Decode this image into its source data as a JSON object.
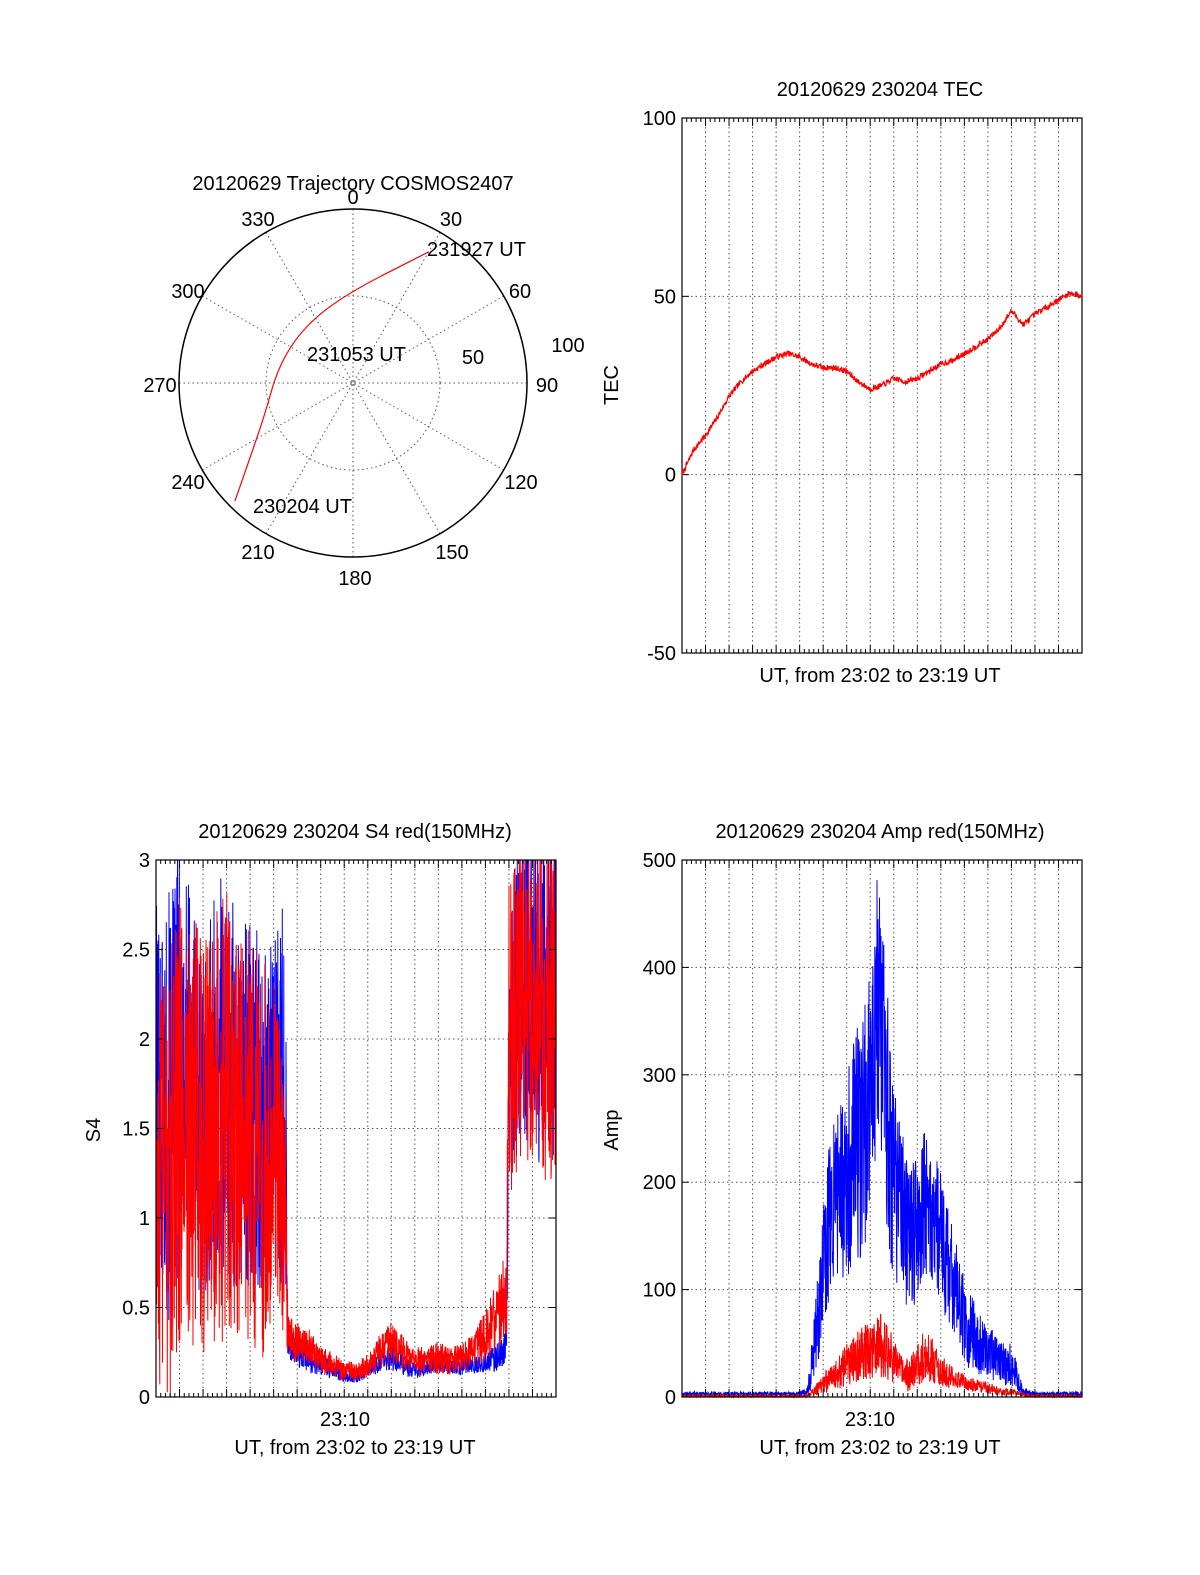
{
  "chart_data": [
    {
      "type": "polar",
      "title": "20120629 Trajectory COSMOS2407",
      "azimuth_labels": [
        "0",
        "30",
        "60",
        "90",
        "120",
        "150",
        "180",
        "210",
        "240",
        "270",
        "300",
        "330"
      ],
      "radial_labels": [
        "50",
        "100"
      ],
      "radial_max": 100,
      "trajectory": {
        "color": "#ff0000",
        "points": [
          {
            "az": 225,
            "r": 96
          },
          {
            "az": 233,
            "r": 75
          },
          {
            "az": 250,
            "r": 54
          },
          {
            "az": 283,
            "r": 44
          },
          {
            "az": 320,
            "r": 43
          },
          {
            "az": 357,
            "r": 52
          },
          {
            "az": 30,
            "r": 87
          }
        ]
      },
      "annotations": [
        "231927 UT",
        "231053 UT",
        "230204 UT"
      ]
    },
    {
      "type": "line",
      "title": "20120629 230204 TEC",
      "ylabel": "TEC",
      "xlabel": "UT, from 23:02 to 23:19 UT",
      "ylim": [
        -50,
        100
      ],
      "yticks": [
        "100",
        "50",
        "0",
        "-50"
      ],
      "xlim": [
        0,
        17
      ],
      "series": [
        {
          "color": "#ff0000",
          "x": [
            0,
            0.5,
            1,
            1.5,
            2,
            2.5,
            3,
            3.5,
            4,
            4.5,
            5,
            5.5,
            6,
            6.5,
            7,
            7.5,
            8,
            8.5,
            9,
            9.5,
            10,
            10.5,
            11,
            11.5,
            12,
            12.5,
            13,
            13.5,
            14,
            14.5,
            15,
            15.5,
            16,
            16.5,
            17
          ],
          "values": [
            0,
            7,
            11,
            16,
            22,
            26,
            29,
            31,
            33,
            34,
            33,
            31,
            30,
            30,
            29,
            26,
            24,
            25,
            27,
            26,
            27,
            29,
            31,
            32,
            34,
            36,
            38,
            41,
            46,
            42,
            45,
            47,
            49,
            51,
            50
          ]
        }
      ]
    },
    {
      "type": "line",
      "title": "20120629 230204 S4 red(150MHz)",
      "ylabel": "S4",
      "xlabel": "UT, from 23:02 to 23:19 UT",
      "xtick_label": "23:10",
      "ylim": [
        0,
        3
      ],
      "yticks": [
        "3",
        "2.5",
        "2",
        "1.5",
        "1",
        "0.5",
        "0"
      ],
      "xlim": [
        0,
        17
      ],
      "series": [
        {
          "color": "#0000ff",
          "x": [
            0,
            0.5,
            1,
            1.5,
            2,
            2.5,
            3,
            3.5,
            4,
            4.5,
            5,
            5.5,
            5.6,
            6,
            6.5,
            7,
            7.5,
            8,
            8.5,
            9,
            9.5,
            10,
            10.5,
            11,
            11.5,
            12,
            12.5,
            13,
            13.5,
            14,
            14.5,
            14.9,
            15,
            15.5,
            16,
            16.5,
            17
          ],
          "values": [
            1.7,
            1.6,
            1.9,
            1.8,
            1.5,
            1.7,
            1.8,
            1.6,
            1.7,
            1.5,
            1.6,
            1.7,
            0.3,
            0.25,
            0.2,
            0.18,
            0.15,
            0.13,
            0.12,
            0.15,
            0.2,
            0.22,
            0.18,
            0.15,
            0.17,
            0.2,
            0.18,
            0.17,
            0.18,
            0.2,
            0.22,
            0.3,
            2.0,
            2.3,
            2.4,
            2.2,
            2.3
          ],
          "spread": [
            1.1,
            1.2,
            1.2,
            1.1,
            1.0,
            1.1,
            1.2,
            1.0,
            1.1,
            1.0,
            1.0,
            1.1,
            0.08,
            0.08,
            0.07,
            0.06,
            0.05,
            0.05,
            0.04,
            0.05,
            0.06,
            0.07,
            0.06,
            0.05,
            0.05,
            0.06,
            0.05,
            0.05,
            0.05,
            0.06,
            0.08,
            0.1,
            0.9,
            1.0,
            1.0,
            1.0,
            1.0
          ]
        },
        {
          "color": "#ff0000",
          "x": [
            0,
            0.5,
            1,
            1.5,
            2,
            2.5,
            3,
            3.5,
            4,
            4.5,
            5,
            5.5,
            5.6,
            6,
            6.5,
            7,
            7.5,
            8,
            8.5,
            9,
            9.5,
            10,
            10.5,
            11,
            11.5,
            12,
            12.5,
            13,
            13.5,
            14,
            14.5,
            14.9,
            15,
            15.5,
            16,
            16.5,
            17
          ],
          "values": [
            1.3,
            1.2,
            1.6,
            1.5,
            1.4,
            1.5,
            1.6,
            1.4,
            1.5,
            1.3,
            1.4,
            1.0,
            0.35,
            0.3,
            0.28,
            0.2,
            0.18,
            0.15,
            0.14,
            0.18,
            0.25,
            0.3,
            0.25,
            0.2,
            0.2,
            0.22,
            0.2,
            0.22,
            0.25,
            0.35,
            0.45,
            0.6,
            2.0,
            2.3,
            2.3,
            2.2,
            2.2
          ],
          "spread": [
            1.3,
            1.3,
            1.3,
            1.2,
            1.2,
            1.2,
            1.3,
            1.1,
            1.2,
            1.1,
            1.1,
            0.7,
            0.12,
            0.12,
            0.1,
            0.08,
            0.07,
            0.06,
            0.05,
            0.07,
            0.1,
            0.12,
            0.1,
            0.08,
            0.08,
            0.09,
            0.08,
            0.09,
            0.1,
            0.15,
            0.2,
            0.25,
            0.9,
            1.0,
            1.0,
            1.0,
            1.0
          ]
        }
      ]
    },
    {
      "type": "line",
      "title": "20120629 230204 Amp red(150MHz)",
      "ylabel": "Amp",
      "xlabel": "UT, from 23:02 to 23:19 UT",
      "xtick_label": "23:10",
      "ylim": [
        0,
        500
      ],
      "yticks": [
        "500",
        "400",
        "300",
        "200",
        "100",
        "0"
      ],
      "xlim": [
        0,
        17
      ],
      "series": [
        {
          "color": "#0000ff",
          "x": [
            0,
            1,
            2,
            3,
            4,
            5,
            5.3,
            5.6,
            6,
            6.3,
            6.6,
            7,
            7.3,
            7.6,
            8,
            8.3,
            8.6,
            9,
            9.3,
            9.6,
            10,
            10.3,
            10.6,
            11,
            11.3,
            11.6,
            12,
            12.3,
            12.6,
            13,
            13.5,
            14,
            14.5,
            15,
            16,
            17
          ],
          "values": [
            3,
            3,
            3,
            3,
            3,
            3,
            5,
            40,
            120,
            170,
            180,
            190,
            240,
            230,
            280,
            360,
            300,
            200,
            180,
            150,
            150,
            180,
            170,
            150,
            120,
            100,
            70,
            60,
            50,
            45,
            30,
            30,
            5,
            3,
            3,
            3
          ],
          "spread": [
            2,
            2,
            2,
            2,
            2,
            2,
            4,
            30,
            60,
            80,
            90,
            100,
            110,
            110,
            120,
            130,
            120,
            100,
            80,
            70,
            70,
            70,
            65,
            60,
            55,
            50,
            40,
            35,
            30,
            25,
            20,
            20,
            4,
            2,
            2,
            2
          ]
        },
        {
          "color": "#ff0000",
          "x": [
            0,
            1,
            2,
            3,
            4,
            5,
            5.3,
            5.6,
            6,
            6.3,
            6.6,
            7,
            7.3,
            7.6,
            8,
            8.3,
            8.6,
            9,
            9.3,
            9.6,
            10,
            10.3,
            10.6,
            11,
            11.3,
            11.6,
            12,
            12.3,
            12.6,
            13,
            13.5,
            14,
            14.5,
            15,
            16,
            17
          ],
          "values": [
            1,
            1,
            1,
            1,
            1,
            1,
            1,
            5,
            12,
            18,
            22,
            30,
            35,
            40,
            45,
            50,
            45,
            35,
            25,
            20,
            30,
            40,
            35,
            25,
            20,
            18,
            15,
            12,
            10,
            8,
            5,
            5,
            2,
            1,
            1,
            1
          ],
          "spread": [
            1,
            1,
            1,
            1,
            1,
            1,
            1,
            4,
            10,
            12,
            15,
            20,
            22,
            25,
            28,
            30,
            28,
            22,
            18,
            15,
            20,
            25,
            22,
            15,
            12,
            10,
            8,
            7,
            6,
            5,
            4,
            3,
            1,
            1,
            1,
            1
          ]
        }
      ]
    }
  ]
}
